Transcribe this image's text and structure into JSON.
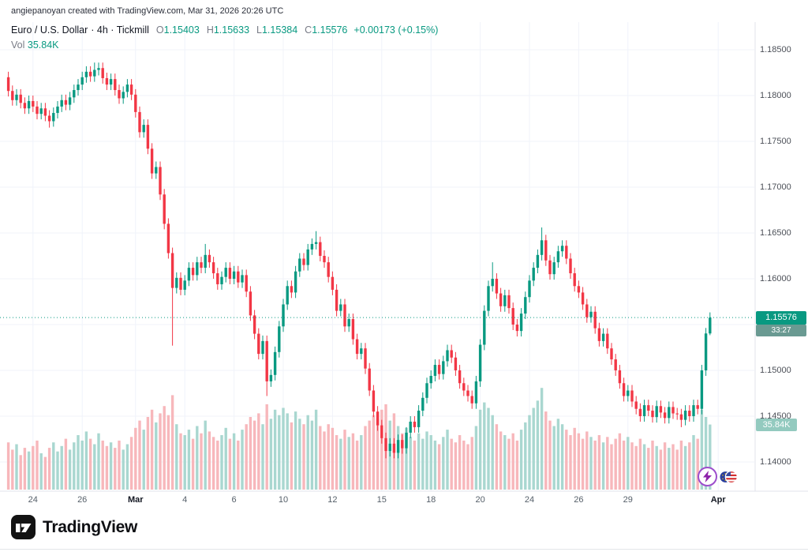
{
  "header": {
    "attribution": "angiepanoyan created with TradingView.com, Mar 31, 2026 20:26 UTC"
  },
  "legend": {
    "symbol": "Euro / U.S. Dollar",
    "meta": "· 4h · Tickmill",
    "o_label": "O",
    "o_value": "1.15403",
    "h_label": "H",
    "h_value": "1.15633",
    "l_label": "L",
    "l_value": "1.15384",
    "c_label": "C",
    "c_value": "1.15576",
    "change": "+0.00173 (+0.15%)",
    "vol_label": "Vol",
    "vol_value": "35.84K"
  },
  "footer": {
    "logo_text": "TradingView"
  },
  "chart_data": {
    "type": "candlestick",
    "title": "Euro / U.S. Dollar",
    "interval": "4h",
    "venue": "Tickmill",
    "last_price": 1.15576,
    "last_price_label": "1.15576",
    "countdown": "33:27",
    "last_volume_label": "35.84K",
    "change_label": "+0.00173 (+0.15%)",
    "ylim": [
      1.14,
      1.185
    ],
    "grid": true,
    "y_axis_ticks": [
      1.185,
      1.18,
      1.175,
      1.17,
      1.165,
      1.16,
      1.155,
      1.15,
      1.145,
      1.14
    ],
    "x_axis_ticks": [
      {
        "label": "24",
        "i": 6
      },
      {
        "label": "26",
        "i": 18
      },
      {
        "label": "Mar",
        "i": 31,
        "major": true
      },
      {
        "label": "4",
        "i": 43
      },
      {
        "label": "6",
        "i": 55
      },
      {
        "label": "10",
        "i": 67
      },
      {
        "label": "12",
        "i": 79
      },
      {
        "label": "15",
        "i": 91
      },
      {
        "label": "18",
        "i": 103
      },
      {
        "label": "20",
        "i": 115
      },
      {
        "label": "24",
        "i": 127
      },
      {
        "label": "26",
        "i": 139
      },
      {
        "label": "29",
        "i": 151
      },
      {
        "label": "Apr",
        "i": 173,
        "major": true
      }
    ],
    "first_open": 1.182,
    "default_wick": 0.0006,
    "closes": [
      1.1805,
      1.1795,
      1.1801,
      1.1792,
      1.1786,
      1.1794,
      1.1788,
      1.178,
      1.1786,
      1.1778,
      1.1772,
      1.1781,
      1.1788,
      1.1795,
      1.179,
      1.1798,
      1.1806,
      1.1812,
      1.182,
      1.1826,
      1.1821,
      1.1828,
      1.183,
      1.1819,
      1.1812,
      1.1818,
      1.1806,
      1.1797,
      1.1804,
      1.1812,
      1.1801,
      1.1782,
      1.176,
      1.1768,
      1.1742,
      1.1715,
      1.1722,
      1.1692,
      1.166,
      1.1628,
      1.159,
      1.1601,
      1.1588,
      1.1598,
      1.1612,
      1.1604,
      1.1618,
      1.1612,
      1.1626,
      1.1618,
      1.1606,
      1.1594,
      1.1602,
      1.1612,
      1.16,
      1.1608,
      1.1596,
      1.1604,
      1.1586,
      1.156,
      1.154,
      1.1518,
      1.1532,
      1.1488,
      1.1495,
      1.152,
      1.1548,
      1.1572,
      1.1592,
      1.1585,
      1.1608,
      1.1622,
      1.1615,
      1.1632,
      1.1638,
      1.164,
      1.1625,
      1.1618,
      1.1602,
      1.1588,
      1.1565,
      1.1572,
      1.1548,
      1.1556,
      1.1534,
      1.1518,
      1.1524,
      1.1502,
      1.1478,
      1.1455,
      1.144,
      1.1426,
      1.1412,
      1.142,
      1.141,
      1.1424,
      1.1415,
      1.1432,
      1.1444,
      1.1438,
      1.1456,
      1.147,
      1.1486,
      1.1494,
      1.1506,
      1.1496,
      1.151,
      1.1522,
      1.1514,
      1.15,
      1.1486,
      1.1478,
      1.1472,
      1.1464,
      1.1488,
      1.1528,
      1.1565,
      1.1592,
      1.16,
      1.1584,
      1.157,
      1.1582,
      1.1568,
      1.155,
      1.1543,
      1.1562,
      1.158,
      1.1598,
      1.1612,
      1.1626,
      1.1642,
      1.162,
      1.1605,
      1.1618,
      1.163,
      1.1636,
      1.1622,
      1.1606,
      1.1592,
      1.1585,
      1.1572,
      1.1558,
      1.1564,
      1.1546,
      1.1532,
      1.154,
      1.1524,
      1.1512,
      1.15,
      1.1486,
      1.1472,
      1.1478,
      1.1466,
      1.1458,
      1.145,
      1.1462,
      1.1456,
      1.1449,
      1.1461,
      1.1454,
      1.1448,
      1.146,
      1.1453,
      1.1452,
      1.1446,
      1.1456,
      1.145,
      1.1462,
      1.1458,
      1.15,
      1.15403,
      1.15576
    ],
    "volumes_k": [
      26,
      22,
      25,
      19,
      23,
      21,
      24,
      27,
      20,
      18,
      23,
      26,
      21,
      24,
      28,
      22,
      26,
      30,
      27,
      32,
      28,
      25,
      31,
      27,
      24,
      26,
      23,
      27,
      22,
      25,
      29,
      34,
      38,
      33,
      40,
      44,
      37,
      42,
      46,
      41,
      52,
      36,
      31,
      30,
      33,
      28,
      35,
      31,
      38,
      32,
      29,
      27,
      30,
      34,
      28,
      31,
      27,
      33,
      36,
      40,
      38,
      42,
      36,
      47,
      39,
      44,
      41,
      45,
      42,
      37,
      43,
      39,
      36,
      41,
      38,
      44,
      35,
      32,
      36,
      34,
      30,
      28,
      33,
      29,
      31,
      27,
      30,
      35,
      38,
      41,
      39,
      44,
      47,
      38,
      42,
      35,
      31,
      34,
      29,
      27,
      31,
      28,
      32,
      30,
      27,
      25,
      29,
      33,
      28,
      26,
      30,
      27,
      25,
      29,
      35,
      44,
      48,
      45,
      41,
      36,
      32,
      30,
      28,
      31,
      27,
      33,
      37,
      41,
      45,
      49,
      56,
      43,
      38,
      35,
      39,
      36,
      33,
      30,
      34,
      31,
      28,
      32,
      29,
      27,
      30,
      26,
      29,
      25,
      28,
      31,
      27,
      29,
      26,
      24,
      28,
      25,
      23,
      27,
      24,
      22,
      26,
      23,
      25,
      22,
      27,
      24,
      26,
      30,
      28,
      44,
      40,
      35.84
    ],
    "special_wicks": {
      "10": {
        "l": 1.1765
      },
      "21": {
        "h": 1.1836
      },
      "40": {
        "l": 1.1527
      },
      "48": {
        "h": 1.1638
      },
      "63": {
        "l": 1.1472
      },
      "75": {
        "h": 1.1652
      },
      "92": {
        "l": 1.1404
      },
      "118": {
        "h": 1.1618
      },
      "130": {
        "h": 1.1656
      },
      "164": {
        "l": 1.1438
      }
    },
    "last_candle": {
      "o": 1.15403,
      "h": 1.15633,
      "l": 1.15384,
      "c": 1.15576
    },
    "colors": {
      "up": "#089981",
      "down": "#f23645",
      "vol_up": "#a9d7d0",
      "vol_down": "#f7b7bb",
      "grid": "#f0f3fa",
      "axis_line": "#e0e3eb",
      "dotted": "#089981",
      "badge": "#089981",
      "countdown_badge": "#6a9a92",
      "volume_badge": "#93cabf",
      "text_dark": "#131722",
      "text_gray": "#787b86"
    }
  }
}
